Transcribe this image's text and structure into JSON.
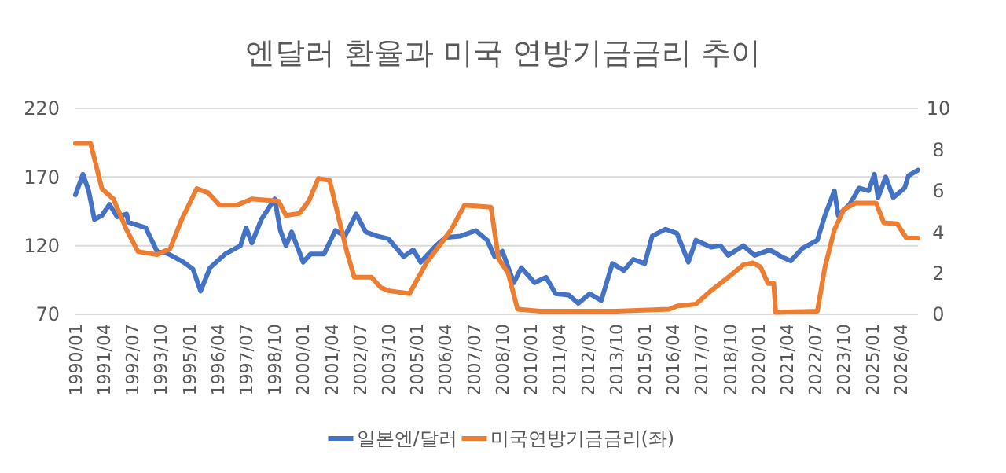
{
  "chart_data": {
    "type": "line",
    "title": "엔달러 환율과 미국 연방기금금리 추이",
    "xlim": [
      "1990-01",
      "2027-01"
    ],
    "xticks": [
      {
        "value": "1990-01",
        "label": "1990/01"
      },
      {
        "value": "1991-04",
        "label": "1991/04"
      },
      {
        "value": "1992-07",
        "label": "1992/07"
      },
      {
        "value": "1993-10",
        "label": "1993/10"
      },
      {
        "value": "1995-01",
        "label": "1995/01"
      },
      {
        "value": "1996-04",
        "label": "1996/04"
      },
      {
        "value": "1997-07",
        "label": "1997/07"
      },
      {
        "value": "1998-10",
        "label": "1998/10"
      },
      {
        "value": "2000-01",
        "label": "2000/01"
      },
      {
        "value": "2001-04",
        "label": "2001/04"
      },
      {
        "value": "2002-07",
        "label": "2002/07"
      },
      {
        "value": "2003-10",
        "label": "2003/10"
      },
      {
        "value": "2005-01",
        "label": "2005/01"
      },
      {
        "value": "2006-04",
        "label": "2006/04"
      },
      {
        "value": "2007-07",
        "label": "2007/07"
      },
      {
        "value": "2008-10",
        "label": "2008/10"
      },
      {
        "value": "2010-01",
        "label": "2010/01"
      },
      {
        "value": "2011-04",
        "label": "2011/04"
      },
      {
        "value": "2012-07",
        "label": "2012/07"
      },
      {
        "value": "2013-10",
        "label": "2013/10"
      },
      {
        "value": "2015-01",
        "label": "2015/01"
      },
      {
        "value": "2016-04",
        "label": "2016/04"
      },
      {
        "value": "2017-07",
        "label": "2017/07"
      },
      {
        "value": "2018-10",
        "label": "2018/10"
      },
      {
        "value": "2020-01",
        "label": "2020/01"
      },
      {
        "value": "2021-04",
        "label": "2021/04"
      },
      {
        "value": "2022-07",
        "label": "2022/07"
      },
      {
        "value": "2023-10",
        "label": "2023/10"
      },
      {
        "value": "2025-01",
        "label": "2025/01"
      },
      {
        "value": "2026-04",
        "label": "2026/04"
      }
    ],
    "ylim": [
      70,
      220
    ],
    "yticks": [
      70,
      120,
      170,
      220
    ],
    "y2lim": [
      0,
      10
    ],
    "y2ticks": [
      0,
      2,
      4,
      6,
      8,
      10
    ],
    "grid": "y",
    "legend": "bottom",
    "marker": "none",
    "line_style": "solid",
    "series": [
      {
        "name": "일본엔/달러",
        "color": "#4472c4",
        "x": [
          "1990-01",
          "1990-05",
          "1990-08",
          "1990-11",
          "1991-03",
          "1991-07",
          "1991-11",
          "1992-04",
          "1992-05",
          "1993-02",
          "1993-08",
          "1994-02",
          "1994-10",
          "1995-03",
          "1995-07",
          "1995-12",
          "1996-08",
          "1997-04",
          "1997-07",
          "1997-10",
          "1998-03",
          "1998-10",
          "1999-01",
          "1999-04",
          "1999-07",
          "2000-01",
          "2000-05",
          "2000-12",
          "2001-06",
          "2001-11",
          "2002-05",
          "2002-10",
          "2003-04",
          "2003-10",
          "2004-06",
          "2004-11",
          "2005-03",
          "2005-11",
          "2006-04",
          "2006-12",
          "2007-08",
          "2008-02",
          "2008-06",
          "2008-10",
          "2009-04",
          "2009-08",
          "2010-03",
          "2010-09",
          "2011-02",
          "2011-09",
          "2012-02",
          "2012-08",
          "2013-02",
          "2013-08",
          "2014-02",
          "2014-07",
          "2015-01",
          "2015-05",
          "2015-12",
          "2016-06",
          "2016-12",
          "2017-04",
          "2017-12",
          "2018-05",
          "2018-09",
          "2019-05",
          "2019-11",
          "2020-07",
          "2021-01",
          "2021-06",
          "2021-12",
          "2022-08",
          "2022-12",
          "2023-05",
          "2023-07",
          "2024-01",
          "2024-06",
          "2024-11",
          "2025-02",
          "2025-04",
          "2025-08",
          "2025-12",
          "2026-06",
          "2026-08",
          "2027-01"
        ],
        "values": [
          157,
          172,
          160,
          139,
          142,
          150,
          141,
          143,
          137,
          133,
          116,
          114,
          108,
          103,
          87,
          104,
          114,
          120,
          133,
          122,
          139,
          154,
          131,
          120,
          130,
          108,
          114,
          114,
          131,
          127,
          143,
          130,
          127,
          125,
          112,
          117,
          108,
          120,
          126,
          127,
          131,
          124,
          112,
          116,
          93,
          104,
          93,
          97,
          85,
          84,
          78,
          85,
          80,
          107,
          102,
          110,
          107,
          127,
          132,
          129,
          108,
          124,
          119,
          120,
          113,
          120,
          113,
          117,
          112,
          109,
          118,
          124,
          142,
          160,
          142,
          150,
          162,
          160,
          172,
          155,
          170,
          155,
          162,
          171,
          175
        ]
      },
      {
        "name": "미국연방기금금리(좌)",
        "color": "#ed7d31",
        "axis": "y2",
        "x": [
          "1990-01",
          "1990-09",
          "1991-03",
          "1991-09",
          "1992-04",
          "1992-10",
          "1993-08",
          "1994-03",
          "1994-09",
          "1995-05",
          "1995-11",
          "1996-05",
          "1997-02",
          "1997-10",
          "1998-12",
          "1999-04",
          "1999-11",
          "2000-04",
          "2000-09",
          "2001-03",
          "2001-12",
          "2002-04",
          "2003-01",
          "2003-06",
          "2003-10",
          "2004-09",
          "2005-06",
          "2006-07",
          "2007-02",
          "2008-04",
          "2008-08",
          "2009-01",
          "2009-06",
          "2010-06",
          "2013-10",
          "2016-02",
          "2016-06",
          "2017-04",
          "2017-12",
          "2018-09",
          "2019-05",
          "2019-10",
          "2020-02",
          "2020-06",
          "2020-09",
          "2020-10",
          "2022-08",
          "2022-12",
          "2023-05",
          "2023-10",
          "2024-04",
          "2025-03",
          "2025-07",
          "2026-02",
          "2026-07",
          "2027-01"
        ],
        "values": [
          8.3,
          8.3,
          6.1,
          5.6,
          4.1,
          3.05,
          2.9,
          3.2,
          4.6,
          6.1,
          5.9,
          5.3,
          5.3,
          5.6,
          5.5,
          4.8,
          4.9,
          5.5,
          6.6,
          6.5,
          3.05,
          1.8,
          1.8,
          1.3,
          1.15,
          1.0,
          2.5,
          4.1,
          5.3,
          5.2,
          2.7,
          2.0,
          0.25,
          0.15,
          0.15,
          0.25,
          0.4,
          0.5,
          1.15,
          1.8,
          2.4,
          2.5,
          2.3,
          1.5,
          1.5,
          0.1,
          0.15,
          2.3,
          4.1,
          5.1,
          5.4,
          5.4,
          4.45,
          4.4,
          3.7,
          3.7
        ]
      }
    ]
  }
}
